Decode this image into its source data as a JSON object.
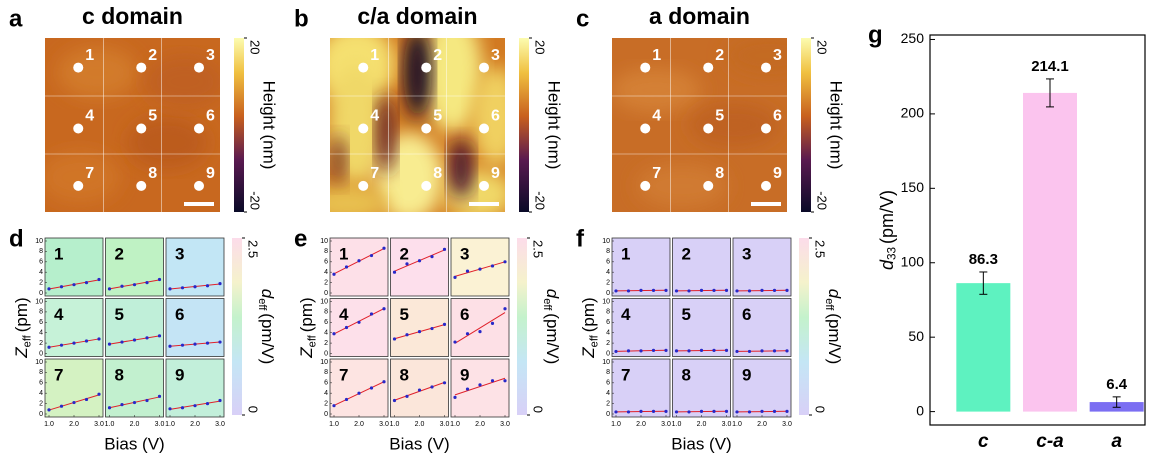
{
  "chart_data": [
    {
      "type": "map",
      "panel": "a",
      "title": "c domain",
      "points": [
        "1",
        "2",
        "3",
        "4",
        "5",
        "6",
        "7",
        "8",
        "9"
      ],
      "colorbar": {
        "label": "Height (nm)",
        "lim": [
          -20,
          20
        ],
        "ticks": [
          20,
          -20
        ]
      }
    },
    {
      "type": "map",
      "panel": "b",
      "title": "c/a domain",
      "points": [
        "1",
        "2",
        "3",
        "4",
        "5",
        "6",
        "7",
        "8",
        "9"
      ],
      "colorbar": {
        "label": "Height (nm)",
        "lim": [
          -20,
          20
        ],
        "ticks": [
          20,
          -20
        ]
      }
    },
    {
      "type": "map",
      "panel": "c",
      "title": "a domain",
      "points": [
        "1",
        "2",
        "3",
        "4",
        "5",
        "6",
        "7",
        "8",
        "9"
      ],
      "colorbar": {
        "label": "Height (nm)",
        "lim": [
          -20,
          20
        ],
        "ticks": [
          20,
          -20
        ]
      }
    },
    {
      "type": "small-multiples",
      "panel": "d",
      "xlabel": "Bias (V)",
      "ylabel": {
        "symbol": "Z",
        "subscript": "eff",
        "unit": "(pm)"
      },
      "x": [
        1,
        1.5,
        2,
        2.5,
        3
      ],
      "xlim": [
        1,
        3
      ],
      "xticks": [
        {
          "value": 1,
          "label": "1.0"
        },
        {
          "value": 2,
          "label": "2.0"
        },
        {
          "value": 3,
          "label": "3.0"
        }
      ],
      "ylim": [
        0,
        10
      ],
      "yticks": [
        0,
        2,
        4,
        6,
        8,
        10
      ],
      "colorbar": {
        "label": {
          "symbol": "d",
          "subscript": "eff",
          "unit": "(pm/V)"
        },
        "lim": [
          0,
          2.5
        ],
        "ticks": [
          2.5,
          0
        ]
      },
      "plots": [
        {
          "name": "1",
          "color": "#b6efcc",
          "values": [
            0.8,
            1.2,
            1.6,
            2.0,
            2.6
          ]
        },
        {
          "name": "2",
          "color": "#bff2c4",
          "values": [
            0.8,
            1.3,
            1.6,
            2.0,
            2.6
          ]
        },
        {
          "name": "3",
          "color": "#c2e6f5",
          "values": [
            0.8,
            1.0,
            1.2,
            1.4,
            1.8
          ]
        },
        {
          "name": "4",
          "color": "#c6f2d8",
          "values": [
            1.2,
            1.6,
            2.0,
            2.4,
            2.8
          ]
        },
        {
          "name": "5",
          "color": "#c0efd9",
          "values": [
            1.8,
            2.2,
            2.6,
            3.0,
            3.4
          ]
        },
        {
          "name": "6",
          "color": "#c4e4f5",
          "values": [
            1.4,
            1.6,
            1.8,
            2.0,
            2.2
          ]
        },
        {
          "name": "7",
          "color": "#d4f2c2",
          "values": [
            0.8,
            1.5,
            2.2,
            2.8,
            3.8
          ]
        },
        {
          "name": "8",
          "color": "#c2f0cf",
          "values": [
            1.2,
            1.8,
            2.2,
            2.6,
            3.4
          ]
        },
        {
          "name": "9",
          "color": "#c2efda",
          "values": [
            1.0,
            1.2,
            1.6,
            2.0,
            2.6
          ]
        }
      ]
    },
    {
      "type": "small-multiples",
      "panel": "e",
      "xlabel": "Bias (V)",
      "ylabel": {
        "symbol": "Z",
        "subscript": "eff",
        "unit": "(pm)"
      },
      "x": [
        1,
        1.5,
        2,
        2.5,
        3
      ],
      "xlim": [
        1,
        3
      ],
      "xticks": [
        {
          "value": 1,
          "label": "1.0"
        },
        {
          "value": 2,
          "label": "2.0"
        },
        {
          "value": 3,
          "label": "3.0"
        }
      ],
      "ylim": [
        0,
        10
      ],
      "yticks": [
        0,
        2,
        4,
        6,
        8,
        10
      ],
      "colorbar": {
        "label": {
          "symbol": "d",
          "subscript": "eff",
          "unit": "(pm/V)"
        },
        "lim": [
          0,
          2.5
        ],
        "ticks": [
          2.5,
          0
        ]
      },
      "plots": [
        {
          "name": "1",
          "color": "#fde0e8",
          "values": [
            3.6,
            5.0,
            6.2,
            7.2,
            8.6
          ]
        },
        {
          "name": "2",
          "color": "#fddfec",
          "values": [
            4.0,
            5.6,
            6.2,
            7.0,
            8.4
          ]
        },
        {
          "name": "3",
          "color": "#fbf2d4",
          "values": [
            3.0,
            4.2,
            4.6,
            5.2,
            6.0
          ]
        },
        {
          "name": "4",
          "color": "#fde0ea",
          "values": [
            3.8,
            5.0,
            6.0,
            7.6,
            8.6
          ]
        },
        {
          "name": "5",
          "color": "#fbe8d8",
          "values": [
            2.8,
            3.6,
            4.2,
            4.8,
            5.6
          ]
        },
        {
          "name": "6",
          "color": "#fde0e6",
          "values": [
            2.2,
            3.8,
            4.2,
            5.8,
            8.6
          ]
        },
        {
          "name": "7",
          "color": "#fde4e2",
          "values": [
            1.6,
            2.8,
            4.0,
            5.0,
            6.2
          ]
        },
        {
          "name": "8",
          "color": "#fbe6da",
          "values": [
            2.6,
            3.4,
            4.6,
            5.2,
            6.0
          ]
        },
        {
          "name": "9",
          "color": "#fde2e6",
          "values": [
            3.2,
            4.8,
            5.6,
            6.4,
            6.4
          ]
        }
      ]
    },
    {
      "type": "small-multiples",
      "panel": "f",
      "xlabel": "Bias (V)",
      "ylabel": {
        "symbol": "Z",
        "subscript": "eff",
        "unit": "(pm)"
      },
      "x": [
        1,
        1.5,
        2,
        2.5,
        3
      ],
      "xlim": [
        1,
        3
      ],
      "xticks": [
        {
          "value": 1,
          "label": "1.0"
        },
        {
          "value": 2,
          "label": "2.0"
        },
        {
          "value": 3,
          "label": "3.0"
        }
      ],
      "ylim": [
        0,
        10
      ],
      "yticks": [
        0,
        2,
        4,
        6,
        8,
        10
      ],
      "colorbar": {
        "label": {
          "symbol": "d",
          "subscript": "eff",
          "unit": "(pm/V)"
        },
        "lim": [
          0,
          2.5
        ],
        "ticks": [
          2.5,
          0
        ]
      },
      "plots": [
        {
          "name": "1",
          "color": "#d8d0f7",
          "values": [
            0.4,
            0.4,
            0.5,
            0.5,
            0.5
          ]
        },
        {
          "name": "2",
          "color": "#d8d0f7",
          "values": [
            0.4,
            0.4,
            0.5,
            0.5,
            0.5
          ]
        },
        {
          "name": "3",
          "color": "#d8d0f7",
          "values": [
            0.4,
            0.4,
            0.5,
            0.5,
            0.5
          ]
        },
        {
          "name": "4",
          "color": "#d8d0f7",
          "values": [
            0.4,
            0.5,
            0.5,
            0.6,
            0.6
          ]
        },
        {
          "name": "5",
          "color": "#d8d0f7",
          "values": [
            0.5,
            0.5,
            0.6,
            0.6,
            0.6
          ]
        },
        {
          "name": "6",
          "color": "#d8d0f7",
          "values": [
            0.4,
            0.4,
            0.5,
            0.5,
            0.5
          ]
        },
        {
          "name": "7",
          "color": "#d8d0f7",
          "values": [
            0.4,
            0.4,
            0.5,
            0.5,
            0.5
          ]
        },
        {
          "name": "8",
          "color": "#d8d0f7",
          "values": [
            0.4,
            0.4,
            0.5,
            0.5,
            0.5
          ]
        },
        {
          "name": "9",
          "color": "#d8d0f7",
          "values": [
            0.4,
            0.4,
            0.5,
            0.5,
            0.5
          ]
        }
      ]
    },
    {
      "type": "bar",
      "panel": "g",
      "categories": [
        "c",
        "c-a",
        "a"
      ],
      "values": [
        86.3,
        214.1,
        6.4
      ],
      "errors": [
        7.5,
        9.4,
        3.5
      ],
      "colors": [
        "#5ef2c0",
        "#fbc4ee",
        "#7b6ef2"
      ],
      "ylim": [
        -9,
        253
      ],
      "yticks": [
        0,
        50,
        100,
        150,
        200,
        250
      ],
      "ylabel": {
        "symbol": "d",
        "subscript": "33",
        "unit": "(pm/V)"
      }
    }
  ]
}
